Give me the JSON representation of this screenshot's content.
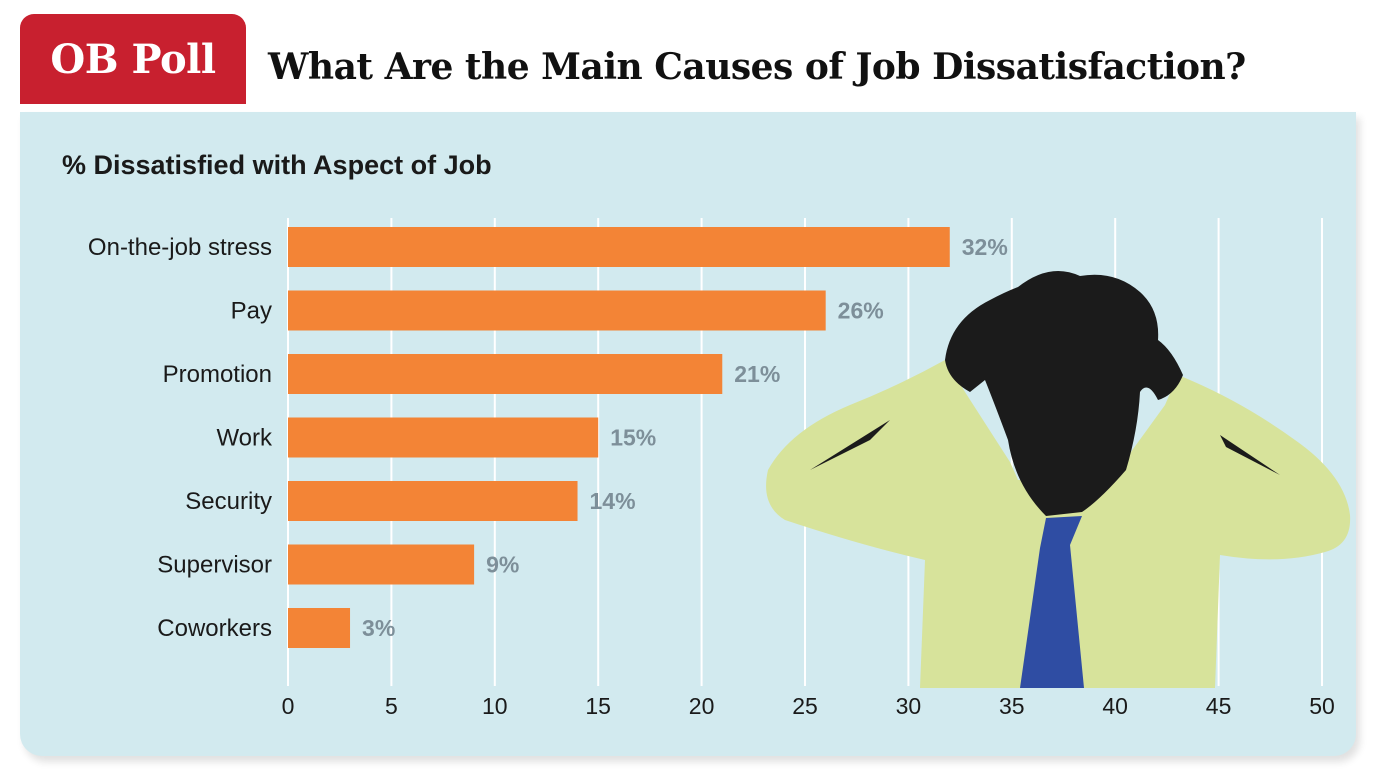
{
  "header": {
    "badge": "OB Poll",
    "title": "What Are the Main Causes of Job Dissatisfaction?"
  },
  "chart_data": {
    "type": "bar",
    "orientation": "horizontal",
    "title": "% Dissatisfied with Aspect of Job",
    "categories": [
      "On-the-job stress",
      "Pay",
      "Promotion",
      "Work",
      "Security",
      "Supervisor",
      "Coworkers"
    ],
    "values": [
      32,
      26,
      21,
      15,
      14,
      9,
      3
    ],
    "value_labels": [
      "32%",
      "26%",
      "21%",
      "15%",
      "14%",
      "9%",
      "3%"
    ],
    "xlim": [
      0,
      50
    ],
    "xticks": [
      0,
      5,
      10,
      15,
      20,
      25,
      30,
      35,
      40,
      45,
      50
    ],
    "grid": "vertical",
    "xlabel": "",
    "ylabel": ""
  },
  "colors": {
    "bar": "#f38436",
    "panel": "#d2eaef",
    "badge": "#c8202f",
    "value_label": "#7d8f99",
    "grid": "#ffffff"
  },
  "illustration": {
    "name": "stressed-man-icon"
  }
}
